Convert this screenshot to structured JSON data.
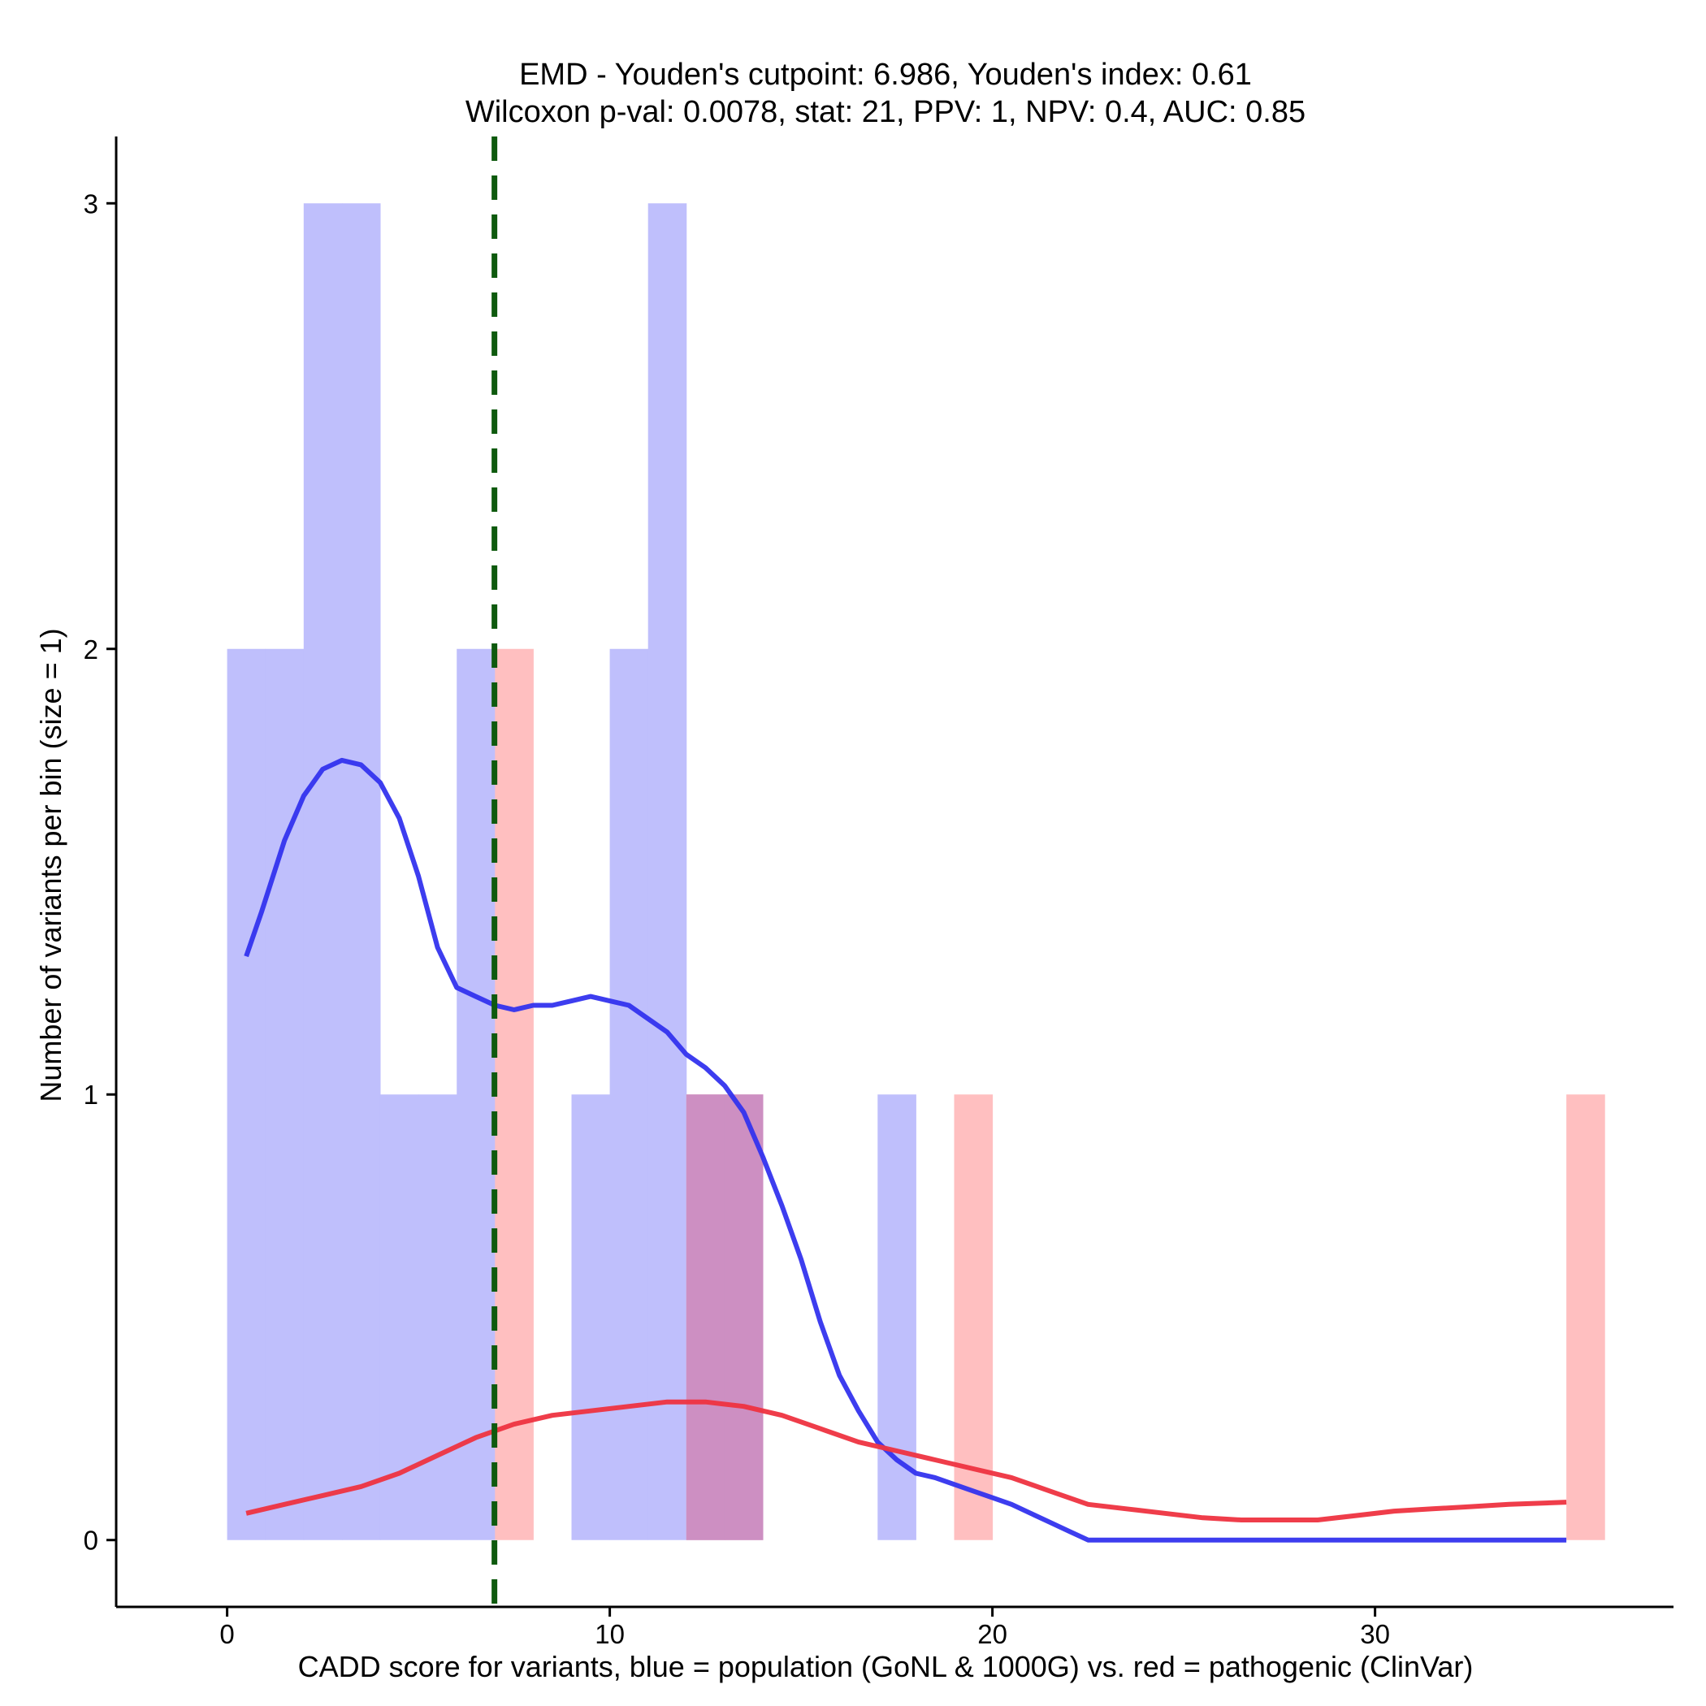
{
  "chart_data": {
    "type": "bar",
    "title": "EMD - Youden's cutpoint: 6.986, Youden's index: 0.61",
    "subtitle": "Wilcoxon p-val: 0.0078, stat: 21, PPV: 1, NPV: 0.4, AUC: 0.85",
    "xlabel": "CADD score for variants, blue = population (GoNL & 1000G) vs. red = pathogenic (ClinVar)",
    "ylabel": "Number of variants per bin (size = 1)",
    "xlim": [
      -2.9,
      37.8
    ],
    "ylim": [
      -0.15,
      3.15
    ],
    "x_ticks": [
      0,
      10,
      20,
      30
    ],
    "x_tick_labels": [
      "0",
      "10",
      "20",
      "30"
    ],
    "y_ticks": [
      0,
      1,
      2,
      3
    ],
    "y_tick_labels": [
      "0",
      "1",
      "2",
      "3"
    ],
    "bin_width": 1,
    "cutpoint": 6.986,
    "colors": {
      "population_bar": "#bfbffc",
      "pathogenic_bar": "#ffbfc0",
      "overlap_bar": "#cd8fc2",
      "population_line": "#3333ee",
      "pathogenic_line": "#ee3340",
      "cutpoint_line": "#0e5a0e",
      "axis": "#000000"
    },
    "series": [
      {
        "name": "population (GoNL & 1000G)",
        "bins": [
          {
            "x0": 0,
            "count": 2
          },
          {
            "x0": 1,
            "count": 2
          },
          {
            "x0": 2,
            "count": 3
          },
          {
            "x0": 3,
            "count": 3
          },
          {
            "x0": 4,
            "count": 1
          },
          {
            "x0": 5,
            "count": 1
          },
          {
            "x0": 6,
            "count": 2
          },
          {
            "x0": 9,
            "count": 1
          },
          {
            "x0": 10,
            "count": 2
          },
          {
            "x0": 11,
            "count": 3
          },
          {
            "x0": 12,
            "count": 1
          },
          {
            "x0": 13,
            "count": 1
          },
          {
            "x0": 17,
            "count": 1
          }
        ],
        "density": [
          [
            0.5,
            1.31
          ],
          [
            0.9,
            1.41
          ],
          [
            1.5,
            1.57
          ],
          [
            2.0,
            1.67
          ],
          [
            2.5,
            1.73
          ],
          [
            3.0,
            1.75
          ],
          [
            3.5,
            1.74
          ],
          [
            4.0,
            1.7
          ],
          [
            4.5,
            1.62
          ],
          [
            5.0,
            1.49
          ],
          [
            5.5,
            1.33
          ],
          [
            6.0,
            1.24
          ],
          [
            6.5,
            1.22
          ],
          [
            7.0,
            1.2
          ],
          [
            7.5,
            1.19
          ],
          [
            8.0,
            1.2
          ],
          [
            8.5,
            1.2
          ],
          [
            9.0,
            1.21
          ],
          [
            9.5,
            1.22
          ],
          [
            10.0,
            1.21
          ],
          [
            10.5,
            1.2
          ],
          [
            11.0,
            1.17
          ],
          [
            11.5,
            1.14
          ],
          [
            12.0,
            1.09
          ],
          [
            12.5,
            1.06
          ],
          [
            13.0,
            1.02
          ],
          [
            13.5,
            0.96
          ],
          [
            14.0,
            0.86
          ],
          [
            14.5,
            0.75
          ],
          [
            15.0,
            0.63
          ],
          [
            15.5,
            0.49
          ],
          [
            16.0,
            0.37
          ],
          [
            16.5,
            0.29
          ],
          [
            17.0,
            0.22
          ],
          [
            17.5,
            0.18
          ],
          [
            18.0,
            0.15
          ],
          [
            18.5,
            0.14
          ],
          [
            19.0,
            0.125
          ],
          [
            19.5,
            0.11
          ],
          [
            20.0,
            0.095
          ],
          [
            20.5,
            0.08
          ],
          [
            21.0,
            0.06
          ],
          [
            21.5,
            0.04
          ],
          [
            22.0,
            0.02
          ],
          [
            22.5,
            0.0
          ],
          [
            35.0,
            0.0
          ]
        ]
      },
      {
        "name": "pathogenic (ClinVar)",
        "bins": [
          {
            "x0": 7,
            "count": 2
          },
          {
            "x0": 12,
            "count": 1
          },
          {
            "x0": 13,
            "count": 1
          },
          {
            "x0": 19,
            "count": 1
          },
          {
            "x0": 35,
            "count": 1
          }
        ],
        "density": [
          [
            0.5,
            0.06
          ],
          [
            1.5,
            0.08
          ],
          [
            2.5,
            0.1
          ],
          [
            3.5,
            0.12
          ],
          [
            4.5,
            0.15
          ],
          [
            5.5,
            0.19
          ],
          [
            6.5,
            0.23
          ],
          [
            7.5,
            0.26
          ],
          [
            8.5,
            0.28
          ],
          [
            9.5,
            0.29
          ],
          [
            10.5,
            0.3
          ],
          [
            11.5,
            0.31
          ],
          [
            12.5,
            0.31
          ],
          [
            13.5,
            0.3
          ],
          [
            14.5,
            0.28
          ],
          [
            15.5,
            0.25
          ],
          [
            16.5,
            0.22
          ],
          [
            17.5,
            0.2
          ],
          [
            18.5,
            0.18
          ],
          [
            19.5,
            0.16
          ],
          [
            20.5,
            0.14
          ],
          [
            21.5,
            0.11
          ],
          [
            22.5,
            0.08
          ],
          [
            23.5,
            0.07
          ],
          [
            24.5,
            0.06
          ],
          [
            25.5,
            0.05
          ],
          [
            26.5,
            0.045
          ],
          [
            27.5,
            0.045
          ],
          [
            28.5,
            0.045
          ],
          [
            29.5,
            0.055
          ],
          [
            30.5,
            0.065
          ],
          [
            31.5,
            0.07
          ],
          [
            32.5,
            0.075
          ],
          [
            33.5,
            0.08
          ],
          [
            35.0,
            0.085
          ]
        ]
      }
    ]
  }
}
